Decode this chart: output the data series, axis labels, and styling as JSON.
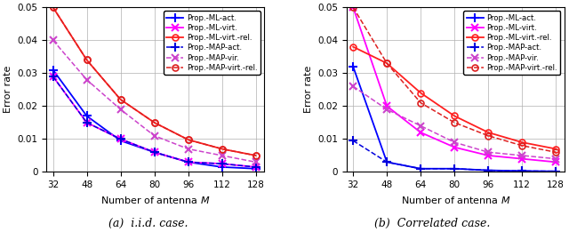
{
  "x": [
    32,
    48,
    64,
    80,
    96,
    112,
    128
  ],
  "iid": {
    "ML_act": [
      0.031,
      0.017,
      0.0095,
      0.006,
      0.003,
      0.0015,
      0.001
    ],
    "ML_virt": [
      0.029,
      0.015,
      0.01,
      0.006,
      0.003,
      0.0025,
      0.0015
    ],
    "ML_virt_rel": [
      0.05,
      0.034,
      0.022,
      0.015,
      0.0098,
      0.007,
      0.005
    ],
    "MAP_act": [
      0.029,
      0.015,
      0.01,
      0.006,
      0.003,
      0.0025,
      0.0015
    ],
    "MAP_vir": [
      0.04,
      0.028,
      0.019,
      0.011,
      0.007,
      0.005,
      0.003
    ],
    "MAP_virt_rel": [
      0.05,
      0.034,
      0.022,
      0.015,
      0.0098,
      0.007,
      0.005
    ]
  },
  "corr": {
    "ML_act": [
      0.032,
      0.003,
      0.001,
      0.001,
      0.0005,
      0.0003,
      0.0002
    ],
    "ML_virt": [
      0.05,
      0.02,
      0.012,
      0.0075,
      0.005,
      0.004,
      0.003
    ],
    "ML_virt_rel": [
      0.038,
      0.033,
      0.024,
      0.017,
      0.012,
      0.009,
      0.007
    ],
    "MAP_act": [
      0.0095,
      0.003,
      0.001,
      0.001,
      0.0005,
      0.0003,
      0.0002
    ],
    "MAP_vir": [
      0.026,
      0.019,
      0.014,
      0.009,
      0.006,
      0.005,
      0.004
    ],
    "MAP_virt_rel": [
      0.05,
      0.033,
      0.021,
      0.015,
      0.011,
      0.008,
      0.006
    ]
  },
  "legend_labels": [
    "Prop.-ML-act.",
    "Prop.-ML-virt.",
    "Prop.-ML-virt.-rel.",
    "Prop.-MAP-act.",
    "Prop.-MAP-vir.",
    "Prop.-MAP-virt.-rel."
  ],
  "subplot_labels": [
    "(a)  i.i.d. case.",
    "(b)  Correlated case."
  ],
  "colors": {
    "ML_act": "#0000ff",
    "ML_virt": "#ff00ff",
    "ML_virt_rel": "#ff2020",
    "MAP_act": "#0000dd",
    "MAP_vir": "#cc44cc",
    "MAP_virt_rel": "#dd2020"
  },
  "ylim": [
    0,
    0.05
  ],
  "xlim": [
    29,
    132
  ],
  "xticks": [
    32,
    48,
    64,
    80,
    96,
    112,
    128
  ],
  "yticks": [
    0,
    0.01,
    0.02,
    0.03,
    0.04,
    0.05
  ],
  "xlabel": "Number of antenna $M$",
  "ylabel": "Error rate"
}
